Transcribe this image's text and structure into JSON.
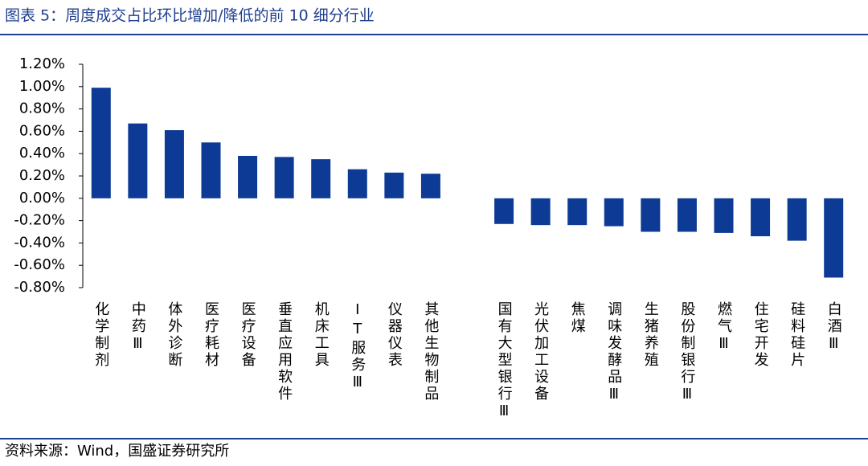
{
  "chart_data": {
    "type": "bar",
    "title": "图表 5：周度成交占比环比增加/降低的前 10 细分行业",
    "source": "资料来源：Wind，国盛证券研究所",
    "categories": [
      "化学制剂",
      "中药Ⅲ",
      "体外诊断",
      "医疗耗材",
      "医疗设备",
      "垂直应用软件",
      "机床工具",
      "IT服务Ⅲ",
      "仪器仪表",
      "其他生物制品",
      null,
      "国有大型银行Ⅲ",
      "光伏加工设备",
      "焦煤",
      "调味发酵品Ⅲ",
      "生猪养殖",
      "股份制银行Ⅲ",
      "燃气Ⅲ",
      "住宅开发",
      "硅料硅片",
      "白酒Ⅲ"
    ],
    "values": [
      0.99,
      0.67,
      0.61,
      0.5,
      0.38,
      0.37,
      0.35,
      0.26,
      0.23,
      0.22,
      null,
      -0.23,
      -0.24,
      -0.24,
      -0.25,
      -0.3,
      -0.3,
      -0.31,
      -0.34,
      -0.38,
      -0.71
    ],
    "color": "#0d3a95",
    "ylim": [
      -0.8,
      1.2
    ],
    "yticks": [
      {
        "value": 1.2,
        "label": "1.20%"
      },
      {
        "value": 1.0,
        "label": "1.00%"
      },
      {
        "value": 0.8,
        "label": "0.80%"
      },
      {
        "value": 0.6,
        "label": "0.60%"
      },
      {
        "value": 0.4,
        "label": "0.40%"
      },
      {
        "value": 0.2,
        "label": "0.20%"
      },
      {
        "value": 0,
        "label": "0.00%"
      },
      {
        "value": -0.2,
        "label": "-0.20%"
      },
      {
        "value": -0.4,
        "label": "-0.40%"
      },
      {
        "value": -0.6,
        "label": "-0.60%"
      },
      {
        "value": -0.8,
        "label": "-0.80%"
      }
    ],
    "grid": false
  }
}
